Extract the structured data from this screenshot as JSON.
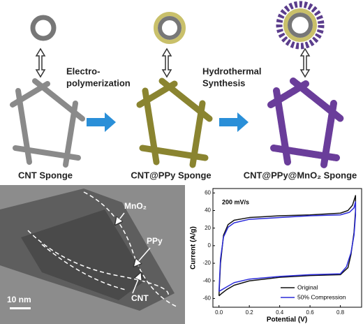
{
  "schematic": {
    "stages": [
      {
        "label": "CNT Sponge"
      },
      {
        "label": "CNT@PPy Sponge"
      },
      {
        "label": "CNT@PPy@MnO₂ Sponge"
      }
    ],
    "steps": [
      {
        "lines": [
          "Electro-",
          "polymerization"
        ]
      },
      {
        "lines": [
          "Hydrothermal",
          "Synthesis"
        ]
      }
    ]
  },
  "tem_image": {
    "labels": [
      "MnO₂",
      "PPy",
      "CNT"
    ],
    "scale_bar": "10 nm"
  },
  "chart_data": {
    "type": "line",
    "annotation": "200 mV/s",
    "xlabel": "Potential (V)",
    "ylabel": "Current (A/g)",
    "xlim": [
      -0.04,
      0.94
    ],
    "ylim": [
      -70,
      65
    ],
    "xticks": [
      {
        "value": 0,
        "label": "0.0"
      },
      0.2,
      0.4,
      0.6,
      0.8
    ],
    "yticks": [
      -60,
      -40,
      -20,
      0,
      20,
      40,
      60
    ],
    "legend": "lower right",
    "series": [
      {
        "name": "Original",
        "color": "#111111",
        "x": [
          0,
          0.01,
          0.03,
          0.06,
          0.1,
          0.2,
          0.4,
          0.6,
          0.8,
          0.85,
          0.88,
          0.9,
          0.9,
          0.89,
          0.87,
          0.85,
          0.8,
          0.6,
          0.4,
          0.2,
          0.1,
          0.05,
          0.02,
          0
        ],
        "values": [
          -57,
          -20,
          12,
          24,
          29,
          32,
          34,
          35,
          37,
          40,
          46,
          57,
          40,
          15,
          -10,
          -25,
          -33,
          -34,
          -36,
          -40,
          -45,
          -50,
          -54,
          -57
        ]
      },
      {
        "name": "50% Compression",
        "color": "#2b2bd9",
        "x": [
          0,
          0.01,
          0.03,
          0.06,
          0.1,
          0.2,
          0.4,
          0.6,
          0.8,
          0.86,
          0.89,
          0.9,
          0.9,
          0.89,
          0.87,
          0.84,
          0.8,
          0.6,
          0.4,
          0.2,
          0.1,
          0.05,
          0.02,
          0
        ],
        "values": [
          -52,
          -15,
          10,
          21,
          26,
          30,
          32,
          34,
          35,
          38,
          43,
          50,
          35,
          12,
          -8,
          -24,
          -32,
          -33,
          -35,
          -38,
          -42,
          -47,
          -50,
          -52
        ]
      }
    ]
  }
}
